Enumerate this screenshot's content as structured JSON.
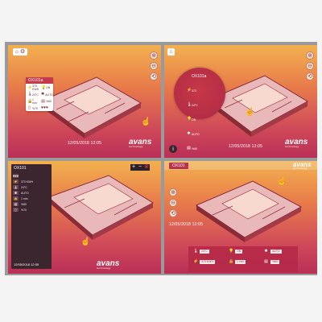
{
  "panels": [
    {
      "name": "panel-1",
      "datetime": "12/05/2018  12:05",
      "logo": "avans",
      "logo_sub": "technology",
      "card": {
        "title": "OX101a",
        "cells": [
          {
            "icon": "lightning-icon",
            "glyph": "⚡",
            "value": "373 KWH"
          },
          {
            "icon": "bulb-icon",
            "glyph": "💡",
            "value": "ON"
          },
          {
            "icon": "thermometer-icon",
            "glyph": "🌡",
            "value": "24°C"
          },
          {
            "icon": "fan-icon",
            "glyph": "✱",
            "value": "AUTO"
          },
          {
            "icon": "lock-icon",
            "glyph": "🔒",
            "value": "1 min"
          },
          {
            "icon": "blind-icon",
            "glyph": "▤",
            "value": "%60"
          },
          {
            "icon": "door-icon",
            "glyph": "▯",
            "value": "%70"
          },
          {
            "icon": "heart-icon",
            "glyph": "♥♥♥",
            "value": ""
          }
        ]
      }
    },
    {
      "name": "panel-2",
      "datetime": "12/05/2018  12:05",
      "logo": "avans",
      "logo_sub": "technology",
      "circle": {
        "title": "OX101a",
        "cells": [
          {
            "icon": "lightning-icon",
            "glyph": "⚡",
            "value": "373"
          },
          {
            "icon": "thermometer-icon",
            "glyph": "🌡",
            "value": "24°C"
          },
          {
            "icon": "bulb-icon",
            "glyph": "💡",
            "value": "ON"
          },
          {
            "icon": "fan-icon",
            "glyph": "✱",
            "value": "AUTO"
          },
          {
            "icon": "blind-icon",
            "glyph": "▤",
            "value": "%60"
          },
          {
            "icon": "heart-icon",
            "glyph": "♥♥♥",
            "value": ""
          }
        ]
      }
    },
    {
      "name": "panel-3",
      "datetime": "12/05/2018  12:05",
      "logo": "avans",
      "logo_sub": "technology",
      "side": {
        "title": "OX101",
        "rows": [
          {
            "icon": "heart-icon",
            "glyph": "♥♥♥",
            "value": "",
            "sub": ""
          },
          {
            "icon": "lightning-icon",
            "glyph": "⚡",
            "value": "373 KWH"
          },
          {
            "icon": "thermometer-icon",
            "glyph": "🌡",
            "value": "24°C"
          },
          {
            "icon": "fan-icon",
            "glyph": "✱",
            "value": "AUTO"
          },
          {
            "icon": "lock-icon",
            "glyph": "🔒",
            "value": "1 min"
          },
          {
            "icon": "blind-icon",
            "glyph": "▤",
            "value": "%60"
          },
          {
            "icon": "door-icon",
            "glyph": "▯",
            "value": "%70"
          }
        ]
      },
      "toolbar": [
        "+",
        "−",
        "⊗"
      ]
    },
    {
      "name": "panel-4",
      "header_button": "OX101",
      "logo": "avans",
      "logo_sub": "technology",
      "datetime": "12/05/2018  12:05",
      "bottom": [
        {
          "icon": "thermometer-icon",
          "glyph": "🌡",
          "label": "24°C"
        },
        {
          "icon": "bulb-icon",
          "glyph": "💡",
          "label": "ON"
        },
        {
          "icon": "fan-icon",
          "glyph": "✱",
          "label": "AUTO"
        },
        {
          "icon": "lightning-icon",
          "glyph": "⚡",
          "label": "373 KWH"
        },
        {
          "icon": "lock-icon",
          "glyph": "🔒",
          "label": "1 min"
        },
        {
          "icon": "blind-icon",
          "glyph": "▤",
          "label": "%60"
        }
      ]
    }
  ],
  "icons": {
    "home": "⌂",
    "settings": "⚙",
    "zoom_in": "⊕",
    "zoom_out": "⊖",
    "reset": "⟲",
    "info": "i",
    "hand": "☝"
  }
}
